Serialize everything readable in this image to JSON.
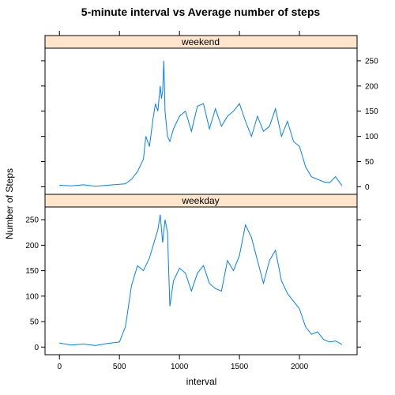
{
  "chart_data": {
    "type": "line",
    "title": "5-minute interval vs Average number of steps",
    "xlabel": "interval",
    "ylabel": "Number of Steps",
    "xlim": [
      -120,
      2480
    ],
    "ylim": [
      -15,
      275
    ],
    "x_ticks": [
      "0",
      "500",
      "1000",
      "1500",
      "2000"
    ],
    "y_ticks": [
      "0",
      "50",
      "100",
      "150",
      "200",
      "250"
    ],
    "line_color": "#0080ff",
    "strip_color": "#ffe5cc",
    "panels": [
      {
        "label": "weekend",
        "x": [
          0,
          100,
          200,
          300,
          400,
          500,
          550,
          600,
          650,
          700,
          720,
          750,
          780,
          800,
          820,
          840,
          850,
          860,
          870,
          880,
          900,
          920,
          950,
          1000,
          1050,
          1100,
          1150,
          1200,
          1250,
          1300,
          1350,
          1400,
          1450,
          1500,
          1550,
          1600,
          1650,
          1700,
          1750,
          1800,
          1850,
          1900,
          1950,
          2000,
          2050,
          2100,
          2150,
          2200,
          2250,
          2300,
          2355
        ],
        "values": [
          3,
          2,
          4,
          1,
          3,
          5,
          6,
          15,
          30,
          55,
          100,
          80,
          135,
          165,
          150,
          200,
          175,
          190,
          250,
          150,
          100,
          90,
          115,
          140,
          150,
          110,
          160,
          165,
          115,
          155,
          120,
          140,
          150,
          165,
          130,
          100,
          140,
          110,
          120,
          155,
          100,
          130,
          90,
          80,
          40,
          20,
          15,
          10,
          8,
          20,
          2
        ]
      },
      {
        "label": "weekday",
        "x": [
          0,
          100,
          200,
          300,
          400,
          500,
          550,
          600,
          650,
          700,
          750,
          800,
          820,
          840,
          860,
          880,
          900,
          920,
          950,
          1000,
          1050,
          1100,
          1150,
          1200,
          1250,
          1300,
          1350,
          1400,
          1450,
          1500,
          1550,
          1600,
          1650,
          1700,
          1750,
          1800,
          1850,
          1900,
          1950,
          2000,
          2050,
          2100,
          2150,
          2200,
          2250,
          2300,
          2355
        ],
        "values": [
          8,
          4,
          6,
          3,
          7,
          10,
          40,
          120,
          160,
          150,
          175,
          215,
          230,
          260,
          205,
          250,
          225,
          80,
          130,
          155,
          145,
          110,
          145,
          160,
          125,
          115,
          110,
          170,
          150,
          180,
          240,
          215,
          170,
          125,
          170,
          190,
          130,
          105,
          90,
          75,
          40,
          25,
          30,
          15,
          10,
          12,
          5
        ]
      }
    ]
  }
}
